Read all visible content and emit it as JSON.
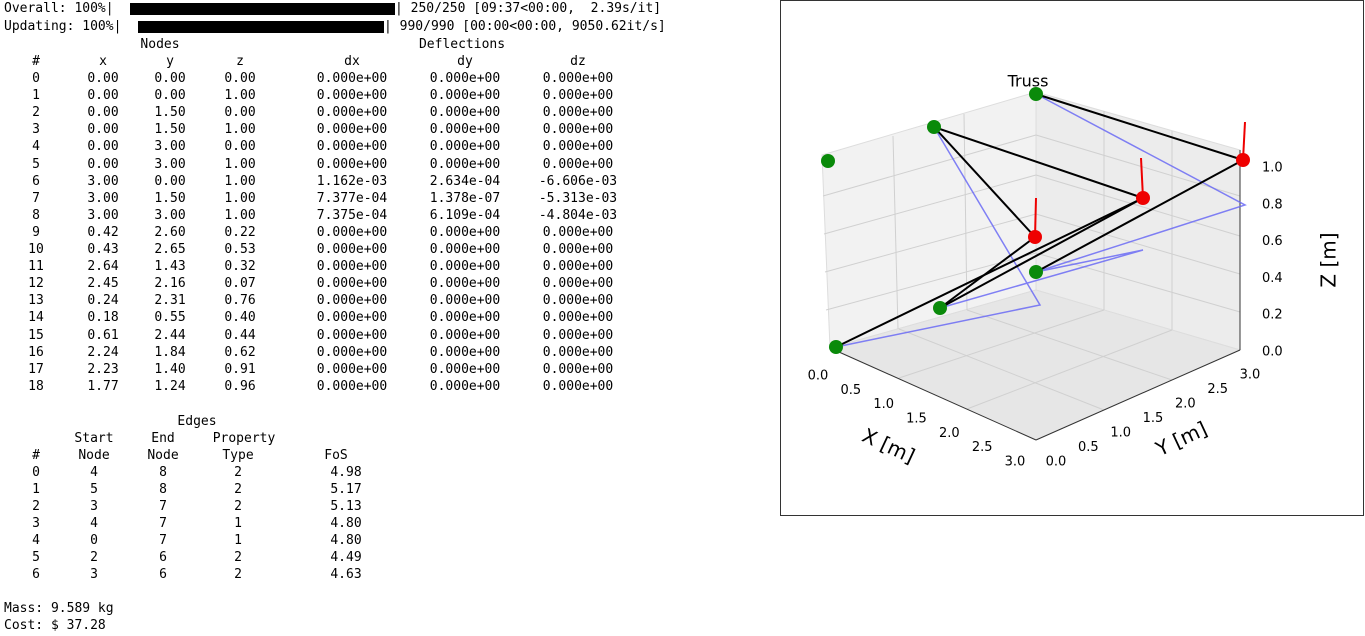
{
  "progress": [
    {
      "label": "Overall: 100%|",
      "status": "| 250/250 [09:37<00:00,  2.39s/it]"
    },
    {
      "label": "Updating: 100%|",
      "status": "| 990/990 [00:00<00:00, 9050.62it/s]"
    }
  ],
  "nodes": {
    "title": "Nodes",
    "deflections_title": "Deflections",
    "headers": [
      "#",
      "x",
      "y",
      "z",
      "dx",
      "dy",
      "dz"
    ],
    "rows": [
      [
        "0",
        "0.00",
        "0.00",
        "0.00",
        "0.000e+00",
        "0.000e+00",
        "0.000e+00"
      ],
      [
        "1",
        "0.00",
        "0.00",
        "1.00",
        "0.000e+00",
        "0.000e+00",
        "0.000e+00"
      ],
      [
        "2",
        "0.00",
        "1.50",
        "0.00",
        "0.000e+00",
        "0.000e+00",
        "0.000e+00"
      ],
      [
        "3",
        "0.00",
        "1.50",
        "1.00",
        "0.000e+00",
        "0.000e+00",
        "0.000e+00"
      ],
      [
        "4",
        "0.00",
        "3.00",
        "0.00",
        "0.000e+00",
        "0.000e+00",
        "0.000e+00"
      ],
      [
        "5",
        "0.00",
        "3.00",
        "1.00",
        "0.000e+00",
        "0.000e+00",
        "0.000e+00"
      ],
      [
        "6",
        "3.00",
        "0.00",
        "1.00",
        "1.162e-03",
        "2.634e-04",
        "-6.606e-03"
      ],
      [
        "7",
        "3.00",
        "1.50",
        "1.00",
        "7.377e-04",
        "1.378e-07",
        "-5.313e-03"
      ],
      [
        "8",
        "3.00",
        "3.00",
        "1.00",
        "7.375e-04",
        "6.109e-04",
        "-4.804e-03"
      ],
      [
        "9",
        "0.42",
        "2.60",
        "0.22",
        "0.000e+00",
        "0.000e+00",
        "0.000e+00"
      ],
      [
        "10",
        "0.43",
        "2.65",
        "0.53",
        "0.000e+00",
        "0.000e+00",
        "0.000e+00"
      ],
      [
        "11",
        "2.64",
        "1.43",
        "0.32",
        "0.000e+00",
        "0.000e+00",
        "0.000e+00"
      ],
      [
        "12",
        "2.45",
        "2.16",
        "0.07",
        "0.000e+00",
        "0.000e+00",
        "0.000e+00"
      ],
      [
        "13",
        "0.24",
        "2.31",
        "0.76",
        "0.000e+00",
        "0.000e+00",
        "0.000e+00"
      ],
      [
        "14",
        "0.18",
        "0.55",
        "0.40",
        "0.000e+00",
        "0.000e+00",
        "0.000e+00"
      ],
      [
        "15",
        "0.61",
        "2.44",
        "0.44",
        "0.000e+00",
        "0.000e+00",
        "0.000e+00"
      ],
      [
        "16",
        "2.24",
        "1.84",
        "0.62",
        "0.000e+00",
        "0.000e+00",
        "0.000e+00"
      ],
      [
        "17",
        "2.23",
        "1.40",
        "0.91",
        "0.000e+00",
        "0.000e+00",
        "0.000e+00"
      ],
      [
        "18",
        "1.77",
        "1.24",
        "0.96",
        "0.000e+00",
        "0.000e+00",
        "0.000e+00"
      ]
    ]
  },
  "edges": {
    "title": "Edges",
    "headers_top": [
      "Start",
      "End",
      "Property"
    ],
    "headers": [
      "#",
      "Node",
      "Node",
      "Type",
      "FoS"
    ],
    "rows": [
      [
        "0",
        "4",
        "8",
        "2",
        "4.98"
      ],
      [
        "1",
        "5",
        "8",
        "2",
        "5.17"
      ],
      [
        "2",
        "3",
        "7",
        "2",
        "5.13"
      ],
      [
        "3",
        "4",
        "7",
        "1",
        "4.80"
      ],
      [
        "4",
        "0",
        "7",
        "1",
        "4.80"
      ],
      [
        "5",
        "2",
        "6",
        "2",
        "4.49"
      ],
      [
        "6",
        "3",
        "6",
        "2",
        "4.63"
      ]
    ]
  },
  "mass": "Mass: 9.589 kg",
  "cost": "Cost: $ 37.28",
  "plot": {
    "title": "Truss",
    "xlabel": "X [m]",
    "ylabel": "Y [m]",
    "zlabel": "Z [m]",
    "xticks": [
      "0.0",
      "0.5",
      "1.0",
      "1.5",
      "2.0",
      "2.5",
      "3.0"
    ],
    "yticks": [
      "0.0",
      "0.5",
      "1.0",
      "1.5",
      "2.0",
      "2.5",
      "3.0"
    ],
    "zticks": [
      "0.0",
      "0.2",
      "0.4",
      "0.6",
      "0.8",
      "1.0"
    ]
  }
}
